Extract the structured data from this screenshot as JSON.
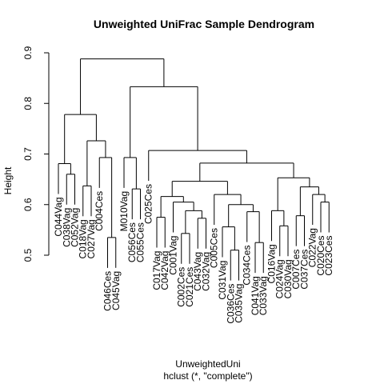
{
  "chart_data": {
    "type": "dendrogram",
    "title": "Unweighted UniFrac Sample Dendrogram",
    "ylabel": "Height",
    "xlabel": "UnweightedUni",
    "sublabel": "hclust (*, \"complete\")",
    "ylim": [
      0.5,
      0.9
    ],
    "yticks": [
      0.5,
      0.6,
      0.7,
      0.8,
      0.9
    ],
    "leaves": [
      "C044Vag",
      "C038Vag",
      "C052Vag",
      "C018Vag",
      "C027Vag",
      "C004Ces",
      "C046Ces",
      "C045Vag",
      "M010Vag",
      "C056Ces",
      "C055Ces",
      "C025Ces",
      "C017Vag",
      "C042Vag",
      "C001Vag",
      "C002Ces",
      "C021Ces",
      "C043Vag",
      "C032Vag",
      "C005Ces",
      "C031Vag",
      "C036Ces",
      "C035Vag",
      "C034Ces",
      "C041Vag",
      "C033Vag",
      "C016Vag",
      "C024Vag",
      "C030Vag",
      "C007Ces",
      "C037Ces",
      "C022Vag",
      "C020Ces",
      "C023Ces"
    ],
    "merges": [
      {
        "left": "C038Vag",
        "right": "C052Vag",
        "height": 0.66
      },
      {
        "left": "C044Vag",
        "right": "m1",
        "height": 0.681
      },
      {
        "left": "C018Vag",
        "right": "C027Vag",
        "height": 0.637
      },
      {
        "left": "C046Ces",
        "right": "C045Vag",
        "height": 0.535
      },
      {
        "left": "C004Ces",
        "right": "m4",
        "height": 0.693
      },
      {
        "left": "m3",
        "right": "m5",
        "height": 0.726
      },
      {
        "left": "m2",
        "right": "m6",
        "height": 0.778
      },
      {
        "left": "C056Ces",
        "right": "C055Ces",
        "height": 0.631
      },
      {
        "left": "M010Vag",
        "right": "m8",
        "height": 0.693
      },
      {
        "left": "C017Vag",
        "right": "C042Vag",
        "height": 0.575
      },
      {
        "left": "C002Ces",
        "right": "C021Ces",
        "height": 0.543
      },
      {
        "left": "C043Vag",
        "right": "C032Vag",
        "height": 0.573
      },
      {
        "left": "m11",
        "right": "m12",
        "height": 0.588
      },
      {
        "left": "C001Vag",
        "right": "m13",
        "height": 0.605
      },
      {
        "left": "m10",
        "right": "m14",
        "height": 0.616
      },
      {
        "left": "C036Ces",
        "right": "C035Vag",
        "height": 0.51
      },
      {
        "left": "C031Vag",
        "right": "m16",
        "height": 0.556
      },
      {
        "left": "C041Vag",
        "right": "C033Vag",
        "height": 0.525
      },
      {
        "left": "C034Ces",
        "right": "m18",
        "height": 0.586
      },
      {
        "left": "m17",
        "right": "m19",
        "height": 0.6
      },
      {
        "left": "C005Ces",
        "right": "m20",
        "height": 0.62
      },
      {
        "left": "m15",
        "right": "m21",
        "height": 0.646
      },
      {
        "left": "C024Vag",
        "right": "C030Vag",
        "height": 0.558
      },
      {
        "left": "C016Vag",
        "right": "m23",
        "height": 0.588
      },
      {
        "left": "C007Ces",
        "right": "C037Ces",
        "height": 0.578
      },
      {
        "left": "C020Ces",
        "right": "C023Ces",
        "height": 0.605
      },
      {
        "left": "C022Vag",
        "right": "m26",
        "height": 0.62
      },
      {
        "left": "m25",
        "right": "m27",
        "height": 0.635
      },
      {
        "left": "m24",
        "right": "m28",
        "height": 0.653
      },
      {
        "left": "m22",
        "right": "m29",
        "height": 0.682
      },
      {
        "left": "C025Ces",
        "right": "m30",
        "height": 0.707
      },
      {
        "left": "m9",
        "right": "m31",
        "height": 0.833
      },
      {
        "left": "m7",
        "right": "m32",
        "height": 0.888
      }
    ]
  }
}
